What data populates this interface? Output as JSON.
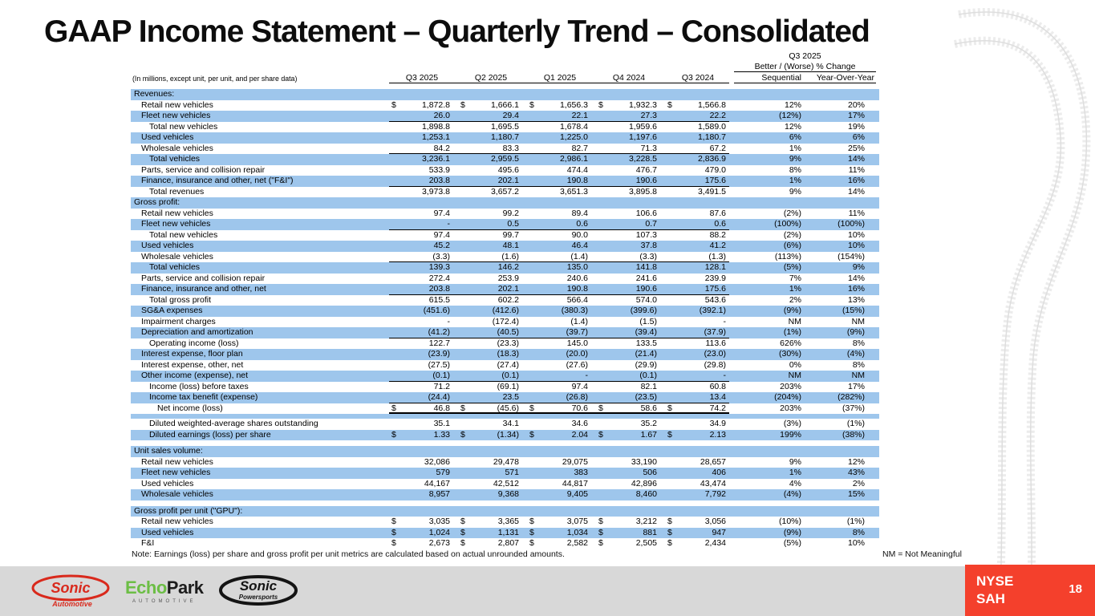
{
  "slide": {
    "title": "GAAP Income Statement – Quarterly Trend – Consolidated",
    "footnote": "Note: Earnings (loss) per share and gross profit per unit metrics are calculated based on actual unrounded amounts.",
    "nm_note": "NM = Not Meaningful",
    "page_number": "18",
    "ticker": {
      "exchange": "NYSE",
      "symbol": "SAH"
    },
    "logos": {
      "sonic_automotive": {
        "text": "Sonic",
        "subtext": "Automotive"
      },
      "echopark": {
        "text_green": "Echo",
        "text_dark": "Park",
        "subtext": "AUTOMOTIVE"
      },
      "sonic_powersports": {
        "text": "Sonic",
        "subtext": "Powersports"
      }
    }
  },
  "colors": {
    "stripe": "#9EC6EC",
    "red": "#F4402C",
    "gray": "#D8D8D8",
    "logo_red": "#D9291C",
    "logo_black": "#141414"
  },
  "table": {
    "units_note": "(In millions, except unit, per unit, and per share data)",
    "change_header": {
      "title": "Q3 2025",
      "subtitle": "Better / (Worse) % Change",
      "columns": [
        "Sequential",
        "Year-Over-Year"
      ]
    },
    "period_columns": [
      "Q3 2025",
      "Q2 2025",
      "Q1 2025",
      "Q4 2024",
      "Q3 2024"
    ],
    "rows": [
      {
        "type": "section",
        "shade": "blue",
        "label": "Revenues:"
      },
      {
        "type": "data",
        "shade": "white",
        "indent": 1,
        "dollar": true,
        "label": "Retail new vehicles",
        "values": [
          "1,872.8",
          "1,666.1",
          "1,656.3",
          "1,932.3",
          "1,566.8"
        ],
        "seq": "12%",
        "yoy": "20%",
        "underline": "none"
      },
      {
        "type": "data",
        "shade": "blue",
        "indent": 1,
        "dollar": false,
        "label": "Fleet new vehicles",
        "values": [
          "26.0",
          "29.4",
          "22.1",
          "27.3",
          "22.2"
        ],
        "seq": "(12%)",
        "yoy": "17%",
        "underline": "single"
      },
      {
        "type": "data",
        "shade": "white",
        "indent": 2,
        "dollar": false,
        "label": "Total new vehicles",
        "values": [
          "1,898.8",
          "1,695.5",
          "1,678.4",
          "1,959.6",
          "1,589.0"
        ],
        "seq": "12%",
        "yoy": "19%",
        "underline": "none"
      },
      {
        "type": "data",
        "shade": "blue",
        "indent": 1,
        "dollar": false,
        "label": "Used vehicles",
        "values": [
          "1,253.1",
          "1,180.7",
          "1,225.0",
          "1,197.6",
          "1,180.7"
        ],
        "seq": "6%",
        "yoy": "6%",
        "underline": "none"
      },
      {
        "type": "data",
        "shade": "white",
        "indent": 1,
        "dollar": false,
        "label": "Wholesale vehicles",
        "values": [
          "84.2",
          "83.3",
          "82.7",
          "71.3",
          "67.2"
        ],
        "seq": "1%",
        "yoy": "25%",
        "underline": "single"
      },
      {
        "type": "data",
        "shade": "blue",
        "indent": 2,
        "dollar": false,
        "label": "Total vehicles",
        "values": [
          "3,236.1",
          "2,959.5",
          "2,986.1",
          "3,228.5",
          "2,836.9"
        ],
        "seq": "9%",
        "yoy": "14%",
        "underline": "none"
      },
      {
        "type": "data",
        "shade": "white",
        "indent": 1,
        "dollar": false,
        "label": "Parts, service and collision repair",
        "values": [
          "533.9",
          "495.6",
          "474.4",
          "476.7",
          "479.0"
        ],
        "seq": "8%",
        "yoy": "11%",
        "underline": "none"
      },
      {
        "type": "data",
        "shade": "blue",
        "indent": 1,
        "dollar": false,
        "label": "Finance, insurance and other, net (\"F&I\")",
        "values": [
          "203.8",
          "202.1",
          "190.8",
          "190.6",
          "175.6"
        ],
        "seq": "1%",
        "yoy": "16%",
        "underline": "single"
      },
      {
        "type": "data",
        "shade": "white",
        "indent": 2,
        "dollar": false,
        "label": "Total revenues",
        "values": [
          "3,973.8",
          "3,657.2",
          "3,651.3",
          "3,895.8",
          "3,491.5"
        ],
        "seq": "9%",
        "yoy": "14%",
        "underline": "none"
      },
      {
        "type": "section",
        "shade": "blue",
        "label": "Gross profit:"
      },
      {
        "type": "data",
        "shade": "white",
        "indent": 1,
        "dollar": false,
        "label": "Retail new vehicles",
        "values": [
          "97.4",
          "99.2",
          "89.4",
          "106.6",
          "87.6"
        ],
        "seq": "(2%)",
        "yoy": "11%",
        "underline": "none"
      },
      {
        "type": "data",
        "shade": "blue",
        "indent": 1,
        "dollar": false,
        "label": "Fleet new vehicles",
        "values": [
          "-",
          "0.5",
          "0.6",
          "0.7",
          "0.6"
        ],
        "seq": "(100%)",
        "yoy": "(100%)",
        "underline": "single"
      },
      {
        "type": "data",
        "shade": "white",
        "indent": 2,
        "dollar": false,
        "label": "Total new vehicles",
        "values": [
          "97.4",
          "99.7",
          "90.0",
          "107.3",
          "88.2"
        ],
        "seq": "(2%)",
        "yoy": "10%",
        "underline": "none"
      },
      {
        "type": "data",
        "shade": "blue",
        "indent": 1,
        "dollar": false,
        "label": "Used vehicles",
        "values": [
          "45.2",
          "48.1",
          "46.4",
          "37.8",
          "41.2"
        ],
        "seq": "(6%)",
        "yoy": "10%",
        "underline": "none"
      },
      {
        "type": "data",
        "shade": "white",
        "indent": 1,
        "dollar": false,
        "label": "Wholesale vehicles",
        "values": [
          "(3.3)",
          "(1.6)",
          "(1.4)",
          "(3.3)",
          "(1.3)"
        ],
        "seq": "(113%)",
        "yoy": "(154%)",
        "underline": "single"
      },
      {
        "type": "data",
        "shade": "blue",
        "indent": 2,
        "dollar": false,
        "label": "Total vehicles",
        "values": [
          "139.3",
          "146.2",
          "135.0",
          "141.8",
          "128.1"
        ],
        "seq": "(5%)",
        "yoy": "9%",
        "underline": "none"
      },
      {
        "type": "data",
        "shade": "white",
        "indent": 1,
        "dollar": false,
        "label": "Parts, service and collision repair",
        "values": [
          "272.4",
          "253.9",
          "240.6",
          "241.6",
          "239.9"
        ],
        "seq": "7%",
        "yoy": "14%",
        "underline": "none"
      },
      {
        "type": "data",
        "shade": "blue",
        "indent": 1,
        "dollar": false,
        "label": "Finance, insurance and other, net",
        "values": [
          "203.8",
          "202.1",
          "190.8",
          "190.6",
          "175.6"
        ],
        "seq": "1%",
        "yoy": "16%",
        "underline": "single"
      },
      {
        "type": "data",
        "shade": "white",
        "indent": 2,
        "dollar": false,
        "label": "Total gross profit",
        "values": [
          "615.5",
          "602.2",
          "566.4",
          "574.0",
          "543.6"
        ],
        "seq": "2%",
        "yoy": "13%",
        "underline": "none"
      },
      {
        "type": "data",
        "shade": "blue",
        "indent": 1,
        "dollar": false,
        "label": "SG&A expenses",
        "values": [
          "(451.6)",
          "(412.6)",
          "(380.3)",
          "(399.6)",
          "(392.1)"
        ],
        "seq": "(9%)",
        "yoy": "(15%)",
        "underline": "none"
      },
      {
        "type": "data",
        "shade": "white",
        "indent": 1,
        "dollar": false,
        "label": "Impairment charges",
        "values": [
          "-",
          "(172.4)",
          "(1.4)",
          "(1.5)",
          "-"
        ],
        "seq": "NM",
        "yoy": "NM",
        "underline": "none"
      },
      {
        "type": "data",
        "shade": "blue",
        "indent": 1,
        "dollar": false,
        "label": "Depreciation and amortization",
        "values": [
          "(41.2)",
          "(40.5)",
          "(39.7)",
          "(39.4)",
          "(37.9)"
        ],
        "seq": "(1%)",
        "yoy": "(9%)",
        "underline": "single"
      },
      {
        "type": "data",
        "shade": "white",
        "indent": 2,
        "dollar": false,
        "label": "Operating income (loss)",
        "values": [
          "122.7",
          "(23.3)",
          "145.0",
          "133.5",
          "113.6"
        ],
        "seq": "626%",
        "yoy": "8%",
        "underline": "none"
      },
      {
        "type": "data",
        "shade": "blue",
        "indent": 1,
        "dollar": false,
        "label": "Interest expense, floor plan",
        "values": [
          "(23.9)",
          "(18.3)",
          "(20.0)",
          "(21.4)",
          "(23.0)"
        ],
        "seq": "(30%)",
        "yoy": "(4%)",
        "underline": "none"
      },
      {
        "type": "data",
        "shade": "white",
        "indent": 1,
        "dollar": false,
        "label": "Interest expense, other, net",
        "values": [
          "(27.5)",
          "(27.4)",
          "(27.6)",
          "(29.9)",
          "(29.8)"
        ],
        "seq": "0%",
        "yoy": "8%",
        "underline": "none"
      },
      {
        "type": "data",
        "shade": "blue",
        "indent": 1,
        "dollar": false,
        "label": "Other income (expense), net",
        "values": [
          "(0.1)",
          "(0.1)",
          "-",
          "(0.1)",
          "-"
        ],
        "seq": "NM",
        "yoy": "NM",
        "underline": "single"
      },
      {
        "type": "data",
        "shade": "white",
        "indent": 2,
        "dollar": false,
        "label": "Income (loss) before taxes",
        "values": [
          "71.2",
          "(69.1)",
          "97.4",
          "82.1",
          "60.8"
        ],
        "seq": "203%",
        "yoy": "17%",
        "underline": "none"
      },
      {
        "type": "data",
        "shade": "blue",
        "indent": 2,
        "dollar": false,
        "label": "Income tax benefit (expense)",
        "values": [
          "(24.4)",
          "23.5",
          "(26.8)",
          "(23.5)",
          "13.4"
        ],
        "seq": "(204%)",
        "yoy": "(282%)",
        "underline": "single"
      },
      {
        "type": "data",
        "shade": "white",
        "indent": 3,
        "dollar": true,
        "label": "Net income (loss)",
        "values": [
          "46.8",
          "(45.6)",
          "70.6",
          "58.6",
          "74.2"
        ],
        "seq": "203%",
        "yoy": "(37%)",
        "underline": "double"
      },
      {
        "type": "spacer",
        "shade": "blue"
      },
      {
        "type": "data",
        "shade": "white",
        "indent": 2,
        "dollar": false,
        "label": "Diluted weighted-average shares outstanding",
        "values": [
          "35.1",
          "34.1",
          "34.6",
          "35.2",
          "34.9"
        ],
        "seq": "(3%)",
        "yoy": "(1%)",
        "underline": "none"
      },
      {
        "type": "data",
        "shade": "blue",
        "indent": 2,
        "dollar": true,
        "label": "Diluted earnings (loss) per share",
        "values": [
          "1.33",
          "(1.34)",
          "2.04",
          "1.67",
          "2.13"
        ],
        "seq": "199%",
        "yoy": "(38%)",
        "underline": "none"
      },
      {
        "type": "spacer",
        "shade": "white"
      },
      {
        "type": "section",
        "shade": "blue",
        "label": "Unit sales volume:"
      },
      {
        "type": "data",
        "shade": "white",
        "indent": 1,
        "dollar": false,
        "label": "Retail new vehicles",
        "values": [
          "32,086",
          "29,478",
          "29,075",
          "33,190",
          "28,657"
        ],
        "seq": "9%",
        "yoy": "12%",
        "underline": "none"
      },
      {
        "type": "data",
        "shade": "blue",
        "indent": 1,
        "dollar": false,
        "label": "Fleet new vehicles",
        "values": [
          "579",
          "571",
          "383",
          "506",
          "406"
        ],
        "seq": "1%",
        "yoy": "43%",
        "underline": "none"
      },
      {
        "type": "data",
        "shade": "white",
        "indent": 1,
        "dollar": false,
        "label": "Used vehicles",
        "values": [
          "44,167",
          "42,512",
          "44,817",
          "42,896",
          "43,474"
        ],
        "seq": "4%",
        "yoy": "2%",
        "underline": "none"
      },
      {
        "type": "data",
        "shade": "blue",
        "indent": 1,
        "dollar": false,
        "label": "Wholesale vehicles",
        "values": [
          "8,957",
          "9,368",
          "9,405",
          "8,460",
          "7,792"
        ],
        "seq": "(4%)",
        "yoy": "15%",
        "underline": "none"
      },
      {
        "type": "spacer",
        "shade": "white"
      },
      {
        "type": "section",
        "shade": "blue",
        "label": "Gross profit per unit (\"GPU\"):"
      },
      {
        "type": "data",
        "shade": "white",
        "indent": 1,
        "dollar": true,
        "label": "Retail new vehicles",
        "values": [
          "3,035",
          "3,365",
          "3,075",
          "3,212",
          "3,056"
        ],
        "seq": "(10%)",
        "yoy": "(1%)",
        "underline": "none"
      },
      {
        "type": "data",
        "shade": "blue",
        "indent": 1,
        "dollar": true,
        "label": "Used vehicles",
        "values": [
          "1,024",
          "1,131",
          "1,034",
          "881",
          "947"
        ],
        "seq": "(9%)",
        "yoy": "8%",
        "underline": "none"
      },
      {
        "type": "data",
        "shade": "white",
        "indent": 1,
        "dollar": true,
        "label": "F&I",
        "values": [
          "2,673",
          "2,807",
          "2,582",
          "2,505",
          "2,434"
        ],
        "seq": "(5%)",
        "yoy": "10%",
        "underline": "none"
      }
    ]
  }
}
